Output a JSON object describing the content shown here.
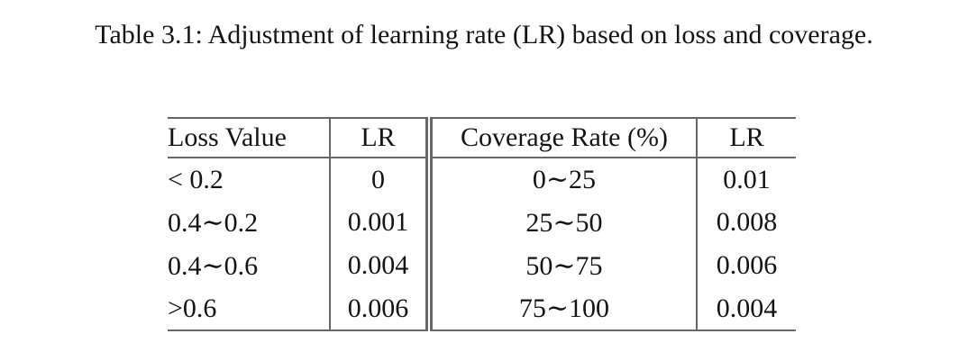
{
  "caption": "Table 3.1: Adjustment of learning rate (LR) based on loss and coverage.",
  "table": {
    "headers": [
      "Loss Value",
      "LR",
      "Coverage Rate (%)",
      "LR"
    ],
    "rows": [
      [
        "< 0.2",
        "0",
        "0∼25",
        "0.01"
      ],
      [
        "0.4∼0.2",
        "0.001",
        "25∼50",
        "0.008"
      ],
      [
        "0.4∼0.6",
        "0.004",
        "50∼75",
        "0.006"
      ],
      [
        ">0.6",
        "0.006",
        "75∼100",
        "0.004"
      ]
    ]
  },
  "colors": {
    "text": "#141414",
    "rule": "#666666",
    "background": "#ffffff"
  }
}
